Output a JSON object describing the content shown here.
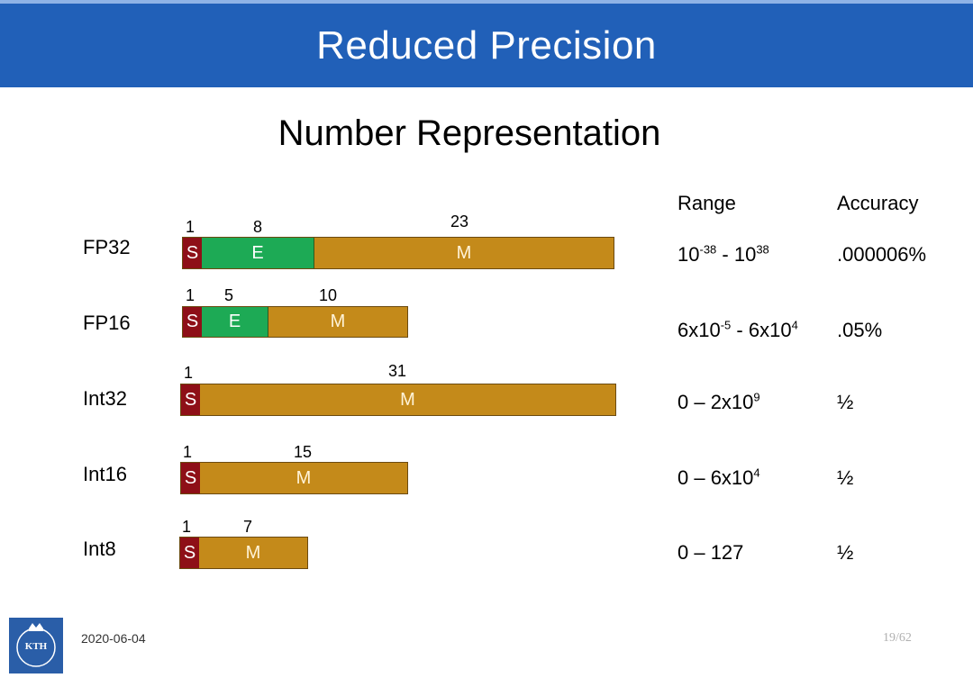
{
  "header": {
    "title": "Reduced Precision"
  },
  "subtitle": "Number Representation",
  "columns": {
    "range": "Range",
    "accuracy": "Accuracy"
  },
  "formats": [
    {
      "name": "FP32",
      "sign_bits": "1",
      "exp_bits": "8",
      "mant_bits": "23",
      "seg_s": "S",
      "seg_e": "E",
      "seg_m": "M",
      "range": {
        "a": "10",
        "a_exp": "-38",
        "sep": " - ",
        "b": "10",
        "b_exp": "38"
      },
      "accuracy": ".000006%"
    },
    {
      "name": "FP16",
      "sign_bits": "1",
      "exp_bits": "5",
      "mant_bits": "10",
      "seg_s": "S",
      "seg_e": "E",
      "seg_m": "M",
      "range": {
        "a": "6x10",
        "a_exp": "-5",
        "sep": " - ",
        "b": "6x10",
        "b_exp": "4"
      },
      "accuracy": ".05%"
    },
    {
      "name": "Int32",
      "sign_bits": "1",
      "mant_bits": "31",
      "seg_s": "S",
      "seg_m": "M",
      "range": {
        "a": "0 – 2x10",
        "a_exp": "9"
      },
      "accuracy": "½"
    },
    {
      "name": "Int16",
      "sign_bits": "1",
      "mant_bits": "15",
      "seg_s": "S",
      "seg_m": "M",
      "range": {
        "a": "0 – 6x10",
        "a_exp": "4"
      },
      "accuracy": "½"
    },
    {
      "name": "Int8",
      "sign_bits": "1",
      "mant_bits": "7",
      "seg_s": "S",
      "seg_m": "M",
      "range": {
        "a": "0 – 127"
      },
      "accuracy": "½"
    }
  ],
  "footer": {
    "date": "2020-06-04",
    "page": "19/62",
    "logo_text": "KTH"
  },
  "colors": {
    "header": "#2160b8",
    "sign": "#8e0f17",
    "exponent": "#1daa55",
    "mantissa": "#c48a1a"
  }
}
